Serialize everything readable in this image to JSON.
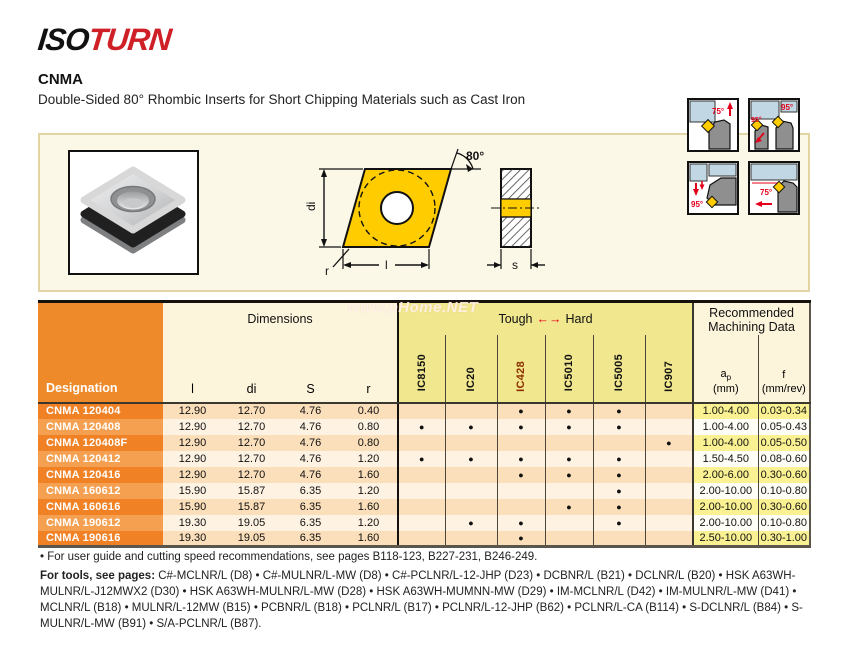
{
  "brand": {
    "iso": "ISO",
    "turn": "TURN"
  },
  "header": {
    "title": "CNMA",
    "subtitle": "Double-Sided 80° Rhombic Inserts for Short Chipping Materials such as Cast Iron"
  },
  "watermark": "www.pHome.NET",
  "diagram": {
    "angle_label": "80°",
    "dim_di": "di",
    "dim_l": "l",
    "dim_r": "r",
    "dim_s": "s"
  },
  "holder_diagrams": [
    {
      "angles": [
        "75°"
      ]
    },
    {
      "angles": [
        "95°",
        "95°"
      ]
    },
    {
      "angles": [
        "95°"
      ]
    },
    {
      "angles": [
        "75°"
      ]
    }
  ],
  "table": {
    "designation_header": "Designation",
    "dimensions_header": "Dimensions",
    "dim_cols": [
      "l",
      "di",
      "S",
      "r"
    ],
    "tough_hard": {
      "left": "Tough",
      "arrow": "←→",
      "right": "Hard"
    },
    "grades": [
      "IC8150",
      "IC20",
      "IC428",
      "IC5010",
      "IC5005",
      "IC907"
    ],
    "highlight_grade": "IC428",
    "machining_header": "Recommended Machining Data",
    "ap_main": "a",
    "ap_sub": "p",
    "ap_unit": "(mm)",
    "f_main": "f",
    "f_unit": "(mm/rev)",
    "dot_glyph": "●",
    "rows": [
      {
        "designation": "CNMA 120404",
        "l": "12.90",
        "di": "12.70",
        "s": "4.76",
        "r": "0.40",
        "dots": [
          0,
          0,
          1,
          1,
          1,
          0
        ],
        "ap": "1.00-4.00",
        "f": "0.03-0.34"
      },
      {
        "designation": "CNMA 120408",
        "l": "12.90",
        "di": "12.70",
        "s": "4.76",
        "r": "0.80",
        "dots": [
          1,
          1,
          1,
          1,
          1,
          0
        ],
        "ap": "1.00-4.00",
        "f": "0.05-0.43"
      },
      {
        "designation": "CNMA 120408F",
        "l": "12.90",
        "di": "12.70",
        "s": "4.76",
        "r": "0.80",
        "dots": [
          0,
          0,
          0,
          0,
          0,
          1
        ],
        "ap": "1.00-4.00",
        "f": "0.05-0.50"
      },
      {
        "designation": "CNMA 120412",
        "l": "12.90",
        "di": "12.70",
        "s": "4.76",
        "r": "1.20",
        "dots": [
          1,
          1,
          1,
          1,
          1,
          0
        ],
        "ap": "1.50-4.50",
        "f": "0.08-0.60"
      },
      {
        "designation": "CNMA 120416",
        "l": "12.90",
        "di": "12.70",
        "s": "4.76",
        "r": "1.60",
        "dots": [
          0,
          0,
          1,
          1,
          1,
          0
        ],
        "ap": "2.00-6.00",
        "f": "0.30-0.60"
      },
      {
        "designation": "CNMA 160612",
        "l": "15.90",
        "di": "15.87",
        "s": "6.35",
        "r": "1.20",
        "dots": [
          0,
          0,
          0,
          0,
          1,
          0
        ],
        "ap": "2.00-10.00",
        "f": "0.10-0.80"
      },
      {
        "designation": "CNMA 160616",
        "l": "15.90",
        "di": "15.87",
        "s": "6.35",
        "r": "1.60",
        "dots": [
          0,
          0,
          0,
          1,
          1,
          0
        ],
        "ap": "2.00-10.00",
        "f": "0.30-0.60"
      },
      {
        "designation": "CNMA 190612",
        "l": "19.30",
        "di": "19.05",
        "s": "6.35",
        "r": "1.20",
        "dots": [
          0,
          1,
          1,
          0,
          1,
          0
        ],
        "ap": "2.00-10.00",
        "f": "0.10-0.80"
      },
      {
        "designation": "CNMA 190616",
        "l": "19.30",
        "di": "19.05",
        "s": "6.35",
        "r": "1.60",
        "dots": [
          0,
          0,
          1,
          0,
          0,
          0
        ],
        "ap": "2.50-10.00",
        "f": "0.30-1.00"
      }
    ]
  },
  "footnotes": {
    "line1": "• For user guide and cutting speed recommendations, see pages B118-123, B227-231, B246-249.",
    "tools_label": "For tools, see pages:",
    "tools_text": " C#-MCLNR/L (D8) • C#-MULNR/L-MW (D8) • C#-PCLNR/L-12-JHP (D23) • DCBNR/L (B21) • DCLNR/L (B20) • HSK A63WH-MULNR/L-J12MWX2 (D30) • HSK A63WH-MULNR/L-MW (D28) • HSK A63WH-MUMNN-MW (D29) • IM-MCLNR/L (D42) • IM-MULNR/L-MW (D41) • MCLNR/L (B18) • MULNR/L-12MW (B15) • PCBNR/L (B18) • PCLNR/L (B17) • PCLNR/L-12-JHP (B62) • PCLNR/L-CA (B114) • S-DCLNR/L (B84) • S-MULNR/L-MW (B91) • S/A-PCLNR/L (B87)."
  },
  "colors": {
    "accent_orange": "#f08125",
    "accent_orange_light": "#f5a050",
    "row_peach": "#fbdfba",
    "row_cream": "#fef3e3",
    "grade_yellow": "#f1e78e",
    "mach_yellow": "#faf192",
    "insert_yellow": "#ffcc00",
    "accent_red": "#e3001b",
    "logo_red": "#cf2027",
    "hot_grade_text": "#8c2e00"
  }
}
